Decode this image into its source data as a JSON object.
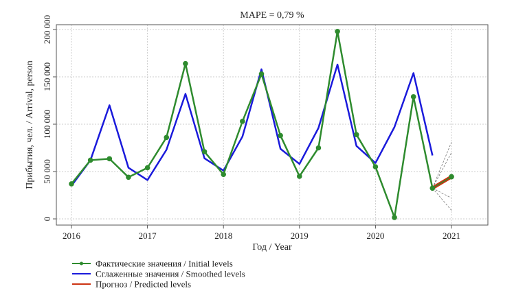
{
  "chart_data": {
    "type": "line",
    "title": "MAPE = 0,79 %",
    "xlabel": "Год / Year",
    "ylabel": "Прибытия, чел. / Arrival, person",
    "xlim": [
      2015.8,
      2021.5
    ],
    "ylim": [
      -8000,
      212000
    ],
    "xticks": [
      2016,
      2017,
      2018,
      2019,
      2020,
      2021
    ],
    "xtick_labels": [
      "2016",
      "2017",
      "2018",
      "2019",
      "2020",
      "2021"
    ],
    "yticks": [
      0,
      50000,
      100000,
      150000,
      200000
    ],
    "ytick_labels": [
      "0",
      "50 000",
      "100 000",
      "150 000",
      "200 000"
    ],
    "grid": true,
    "legend_placement": "bottom-left",
    "series": [
      {
        "name": "Фактические значения / Initial levels",
        "color": "#2e8b2e",
        "markers": true,
        "x": [
          2016,
          2016.25,
          2016.5,
          2016.75,
          2017,
          2017.25,
          2017.5,
          2017.75,
          2018,
          2018.25,
          2018.5,
          2018.75,
          2019,
          2019.25,
          2019.5,
          2019.75,
          2020,
          2020.25,
          2020.5,
          2020.75,
          2021
        ],
        "values": [
          37000,
          62000,
          63500,
          44000,
          54000,
          86000,
          164000,
          71000,
          47000,
          103000,
          153000,
          88000,
          45000,
          75000,
          198000,
          89000,
          55000,
          1500,
          129000,
          32500,
          44500
        ]
      },
      {
        "name": "Сглаженные значения / Smoothed levels",
        "color": "#1a1adb",
        "markers": false,
        "x": [
          2016,
          2016.25,
          2016.5,
          2016.75,
          2017,
          2017.25,
          2017.5,
          2017.75,
          2018,
          2018.25,
          2018.5,
          2018.75,
          2019,
          2019.25,
          2019.5,
          2019.75,
          2020,
          2020.25,
          2020.5,
          2020.75
        ],
        "values": [
          35000,
          62000,
          120000,
          54000,
          41000,
          73000,
          132000,
          64000,
          51000,
          87000,
          158000,
          74000,
          58000,
          96000,
          163000,
          77000,
          59000,
          97000,
          154000,
          67000
        ]
      },
      {
        "name": "Прогноз / Predicted levels",
        "color": "#cc3311",
        "markers": false,
        "x": [
          2020.75,
          2021
        ],
        "values": [
          32500,
          44500
        ]
      }
    ],
    "interval_lines": {
      "color": "#777777",
      "x": [
        2020.75,
        2021
      ],
      "start": 32500,
      "ends": [
        81000,
        70000,
        22000,
        9000
      ]
    }
  }
}
